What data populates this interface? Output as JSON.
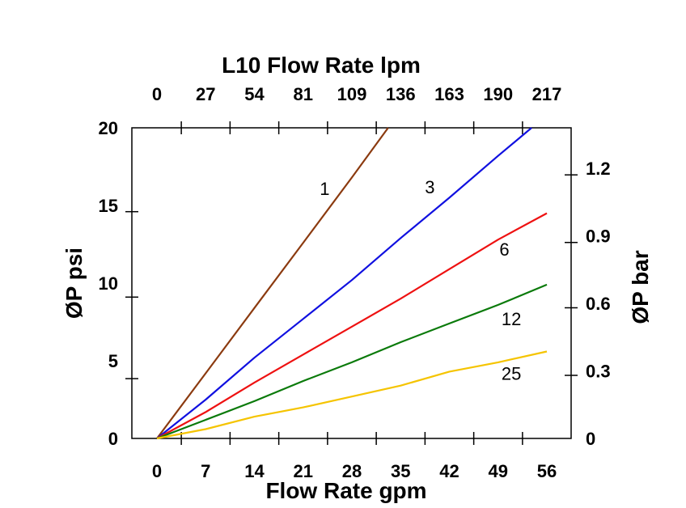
{
  "chart_data": {
    "type": "line",
    "top_title": "L10 Flow Rate lpm",
    "xlabel": "Flow Rate gpm",
    "ylabel": "ØP psi",
    "ylabel_right": "ØP bar",
    "xlim": [
      0,
      56
    ],
    "ylim": [
      0,
      20
    ],
    "x_ticks": [
      "0",
      "7",
      "14",
      "21",
      "28",
      "35",
      "42",
      "49",
      "56"
    ],
    "x_tick_values": [
      0,
      7,
      14,
      21,
      28,
      35,
      42,
      49,
      56
    ],
    "top_ticks": [
      "0",
      "27",
      "54",
      "81",
      "109",
      "136",
      "163",
      "190",
      "217"
    ],
    "y_ticks": [
      "0",
      "5",
      "10",
      "15",
      "20"
    ],
    "y_tick_values": [
      0,
      5,
      10,
      15,
      20
    ],
    "right_ticks": [
      "0",
      "0.3",
      "0.6",
      "0.9",
      "1.2"
    ],
    "right_tick_values": [
      0,
      0.3,
      0.6,
      0.9,
      1.2
    ],
    "grid": false,
    "legend": "none (inline labels)",
    "series": [
      {
        "name": "1",
        "color": "#8B3A0F",
        "label_at": [
          24.1,
          16.1
        ],
        "points": [
          [
            0,
            0
          ],
          [
            7,
            4.2
          ],
          [
            14,
            8.4
          ],
          [
            21,
            12.6
          ],
          [
            28,
            16.8
          ],
          [
            33.2,
            20
          ]
        ]
      },
      {
        "name": "3",
        "color": "#1010E0",
        "label_at": [
          39.2,
          16.2
        ],
        "points": [
          [
            0,
            0
          ],
          [
            7,
            2.5
          ],
          [
            14,
            5.2
          ],
          [
            21,
            7.7
          ],
          [
            28,
            10.2
          ],
          [
            35,
            12.9
          ],
          [
            42,
            15.5
          ],
          [
            49,
            18.2
          ],
          [
            53.8,
            20
          ]
        ]
      },
      {
        "name": "6",
        "color": "#EE1111",
        "label_at": [
          49.9,
          12.2
        ],
        "points": [
          [
            0,
            0
          ],
          [
            7,
            1.7
          ],
          [
            14,
            3.6
          ],
          [
            21,
            5.4
          ],
          [
            28,
            7.2
          ],
          [
            35,
            9.0
          ],
          [
            42,
            10.9
          ],
          [
            49,
            12.8
          ],
          [
            56,
            14.5
          ]
        ]
      },
      {
        "name": "12",
        "color": "#0A7A0A",
        "label_at": [
          50.9,
          7.7
        ],
        "points": [
          [
            0,
            0
          ],
          [
            7,
            1.2
          ],
          [
            14,
            2.4
          ],
          [
            21,
            3.7
          ],
          [
            28,
            4.9
          ],
          [
            35,
            6.2
          ],
          [
            42,
            7.4
          ],
          [
            49,
            8.6
          ],
          [
            56,
            9.9
          ]
        ]
      },
      {
        "name": "25",
        "color": "#F5C400",
        "label_at": [
          50.9,
          4.2
        ],
        "points": [
          [
            0,
            0
          ],
          [
            7,
            0.6
          ],
          [
            14,
            1.4
          ],
          [
            21,
            2.0
          ],
          [
            28,
            2.7
          ],
          [
            35,
            3.4
          ],
          [
            42,
            4.3
          ],
          [
            49,
            4.9
          ],
          [
            56,
            5.6
          ]
        ]
      }
    ]
  }
}
